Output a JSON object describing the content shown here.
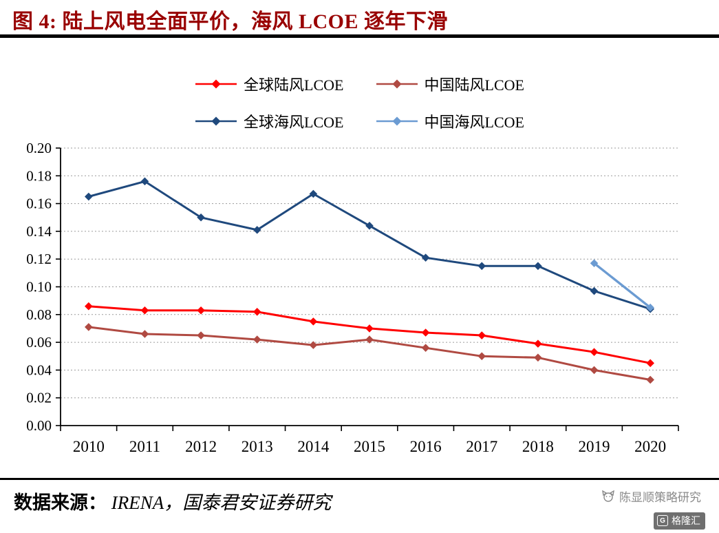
{
  "title": "图 4:  陆上风电全面平价，海风 LCOE 逐年下滑",
  "footer": {
    "source_label": "数据来源：",
    "source_text": "IRENA，国泰君安证券研究",
    "watermark": "陈显顺策略研究",
    "logo_icon": "G",
    "logo_text": "格隆汇"
  },
  "colors": {
    "title": "#990000",
    "axis": "#000000",
    "gridline": "#9a9a9a"
  },
  "chart_data": {
    "type": "line",
    "categories": [
      "2010",
      "2011",
      "2012",
      "2013",
      "2014",
      "2015",
      "2016",
      "2017",
      "2018",
      "2019",
      "2020"
    ],
    "series": [
      {
        "name": "全球陆风LCOE",
        "color": "#FF0000",
        "width": 3,
        "values": [
          0.086,
          0.083,
          0.083,
          0.082,
          0.075,
          0.07,
          0.067,
          0.065,
          0.059,
          0.053,
          0.045
        ]
      },
      {
        "name": "中国陆风LCOE",
        "color": "#B04A42",
        "width": 3,
        "values": [
          0.071,
          0.066,
          0.065,
          0.062,
          0.058,
          0.062,
          0.056,
          0.05,
          0.049,
          0.04,
          0.033
        ]
      },
      {
        "name": "全球海风LCOE",
        "color": "#1F497D",
        "width": 3,
        "values": [
          0.165,
          0.176,
          0.15,
          0.141,
          0.167,
          0.144,
          0.121,
          0.115,
          0.115,
          0.097,
          0.084
        ]
      },
      {
        "name": "中国海风LCOE",
        "color": "#6B9BD2",
        "width": 3.4,
        "values": [
          null,
          null,
          null,
          null,
          null,
          null,
          null,
          null,
          null,
          0.117,
          0.085
        ]
      }
    ],
    "title": "",
    "xlabel": "",
    "ylabel": "",
    "ylim": [
      0.0,
      0.2
    ],
    "ytick_step": 0.02,
    "ytick_format": "two-decimals",
    "grid": "horizontal-dotted",
    "legend_position": "top"
  }
}
